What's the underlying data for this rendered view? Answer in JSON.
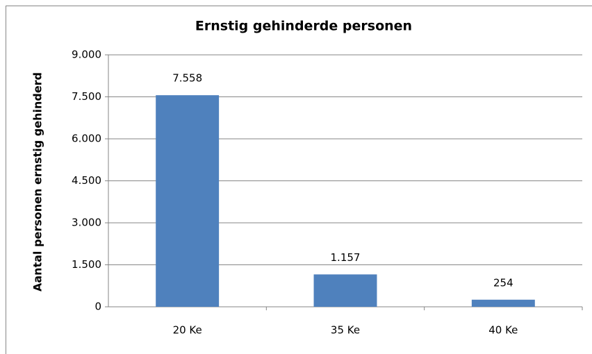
{
  "chart_data": {
    "type": "bar",
    "title": "Ernstig gehinderde personen",
    "y_label": "Aantal personen ernstig gehinderd",
    "categories": [
      "20 Ke",
      "35 Ke",
      "40 Ke"
    ],
    "values": [
      7558,
      1157,
      254
    ],
    "value_labels": [
      "7.558",
      "1.157",
      "254"
    ],
    "color": "#4f81bd",
    "ylim": [
      0,
      9000
    ],
    "yticks": [
      0,
      {
        "value": 1500,
        "label": "1.500"
      },
      {
        "value": 3000,
        "label": "3.000"
      },
      {
        "value": 4500,
        "label": "4.500"
      },
      {
        "value": 6000,
        "label": "6.000"
      },
      {
        "value": 7500,
        "label": "7.500"
      },
      {
        "value": 9000,
        "label": "9.000"
      }
    ],
    "grid": true
  }
}
